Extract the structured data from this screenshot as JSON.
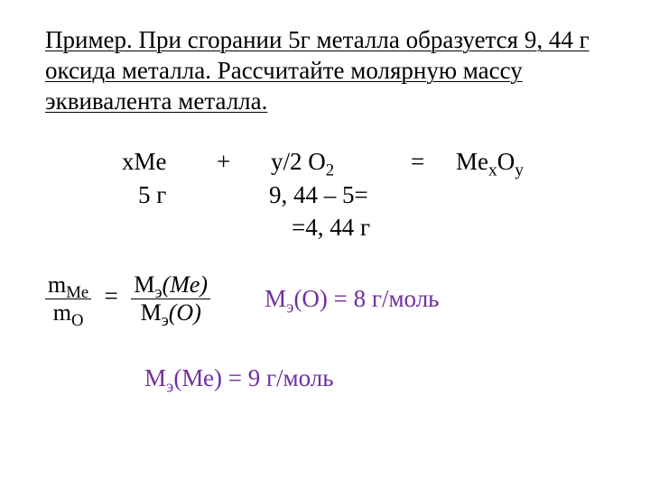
{
  "problem": "Пример. При сгорании 5г металла образуется 9, 44 г оксида металла. Рассчитайте молярную массу эквивалента металла.",
  "eq": {
    "xme": "xMe",
    "plus": "+",
    "o2_a": "y/2 O",
    "o2_sub": "2",
    "equals": "=",
    "prod_a": "Me",
    "prod_x": "x",
    "prod_b": "O",
    "prod_y": "y",
    "mass_me": "5 г",
    "mass_o_calc": "9, 44 – 5=",
    "mass_o_res": "=4, 44 г"
  },
  "frac_img": {
    "num_a": "m",
    "num_sub": "Me",
    "den_a": "m",
    "den_sub": "O",
    "eq": "=",
    "rnum_a": "M",
    "rnum_sub": "э",
    "rnum_arg": "(Me)",
    "rden_a": "M",
    "rden_sub": "э",
    "rden_arg": "(O)"
  },
  "res_o": {
    "M": "М",
    "sub": "э",
    "rest": "(О) = 8 г/моль"
  },
  "res_me": {
    "M": "М",
    "sub": "э",
    "rest": "(Ме) = 9 г/моль"
  }
}
